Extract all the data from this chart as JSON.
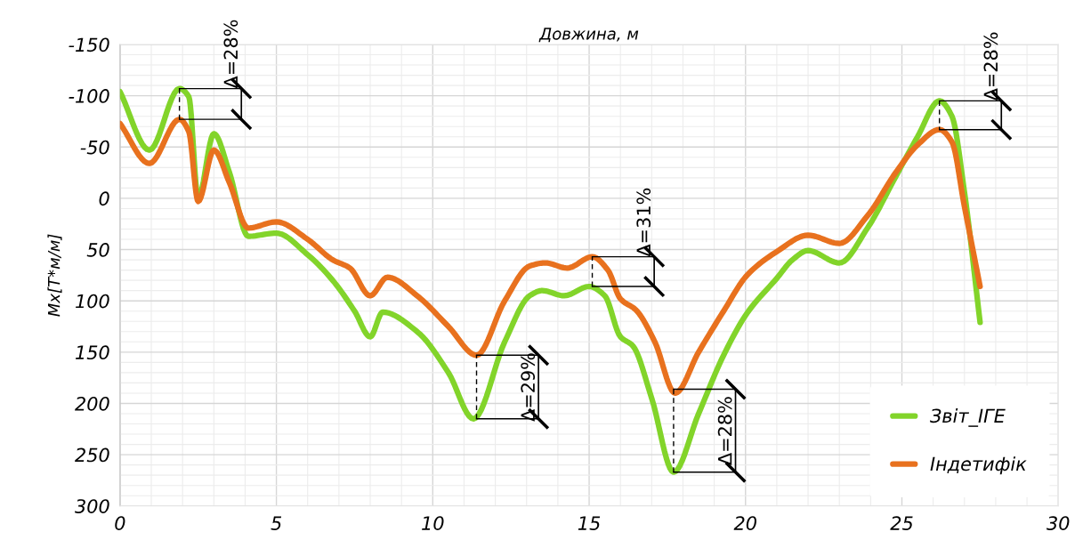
{
  "chart_data": {
    "type": "line",
    "title": "Довжина, м",
    "ylabel": "Mx[Т*м/м]",
    "xlim": [
      0,
      30
    ],
    "xticks": [
      0,
      5,
      10,
      15,
      20,
      25,
      30
    ],
    "ylim": [
      300,
      -150
    ],
    "yticks": [
      -150,
      -100,
      -50,
      0,
      50,
      100,
      150,
      200,
      250,
      300
    ],
    "grid": true,
    "legend": "bottom right",
    "line_style": "solid",
    "marker": "none",
    "series": [
      {
        "name": "Звіт_ІГЕ",
        "color": "#82d42a",
        "x": [
          0,
          0.94,
          1.9,
          2.2,
          2.5,
          3.0,
          3.5,
          4.1,
          5,
          6,
          6.8,
          7.5,
          8,
          8.4,
          9.5,
          10.5,
          11.3,
          12.3,
          13.1,
          13.5,
          14.2,
          15,
          15.5,
          16,
          16.4,
          17,
          17.7,
          18.5,
          19.3,
          20.05,
          21,
          21.5,
          22,
          23,
          23.9,
          24.8,
          25.5,
          26.2,
          26.6,
          27.0,
          27.5
        ],
        "values": [
          -104,
          -47,
          -107,
          -99,
          0,
          -63,
          -25,
          37,
          34,
          55,
          80,
          110,
          135,
          111,
          130,
          170,
          215,
          140,
          95,
          90,
          95,
          86,
          95,
          135,
          144,
          195,
          267,
          210,
          153,
          112,
          78,
          60,
          51,
          63,
          29,
          -21,
          -60,
          -95,
          -80,
          -6,
          121
        ]
      },
      {
        "name": "Індетифік",
        "color": "#e8711e",
        "x": [
          0,
          0.94,
          1.9,
          2.2,
          2.5,
          3.0,
          3.5,
          4.1,
          5,
          6,
          6.8,
          7.35,
          8,
          8.55,
          9.5,
          10.5,
          11.4,
          12.3,
          13.1,
          13.6,
          14.3,
          15.1,
          15.6,
          16,
          16.5,
          17.1,
          17.75,
          18.5,
          19.3,
          20.05,
          21,
          22,
          23,
          23.9,
          24.8,
          25.5,
          26.2,
          26.6,
          27.0,
          27.5
        ],
        "values": [
          -73,
          -34,
          -77,
          -65,
          3,
          -47,
          -15,
          29,
          23,
          40,
          60,
          68,
          95,
          77,
          95,
          125,
          153,
          100,
          66,
          63,
          68,
          57,
          70,
          98,
          109,
          140,
          190,
          150,
          110,
          75,
          52,
          36,
          44,
          17,
          -25,
          -52,
          -67,
          -55,
          8,
          86
        ]
      }
    ],
    "annotations": [
      {
        "text": "Δ=28%",
        "x": 1.9,
        "y": -107
      },
      {
        "text": "Δ=29%",
        "x": 11.4,
        "y": 215
      },
      {
        "text": "Δ=31%",
        "x": 15.1,
        "y": 86
      },
      {
        "text": "Δ=28%",
        "x": 17.7,
        "y": 267
      },
      {
        "text": "Δ=28%",
        "x": 26.2,
        "y": -95
      }
    ]
  }
}
